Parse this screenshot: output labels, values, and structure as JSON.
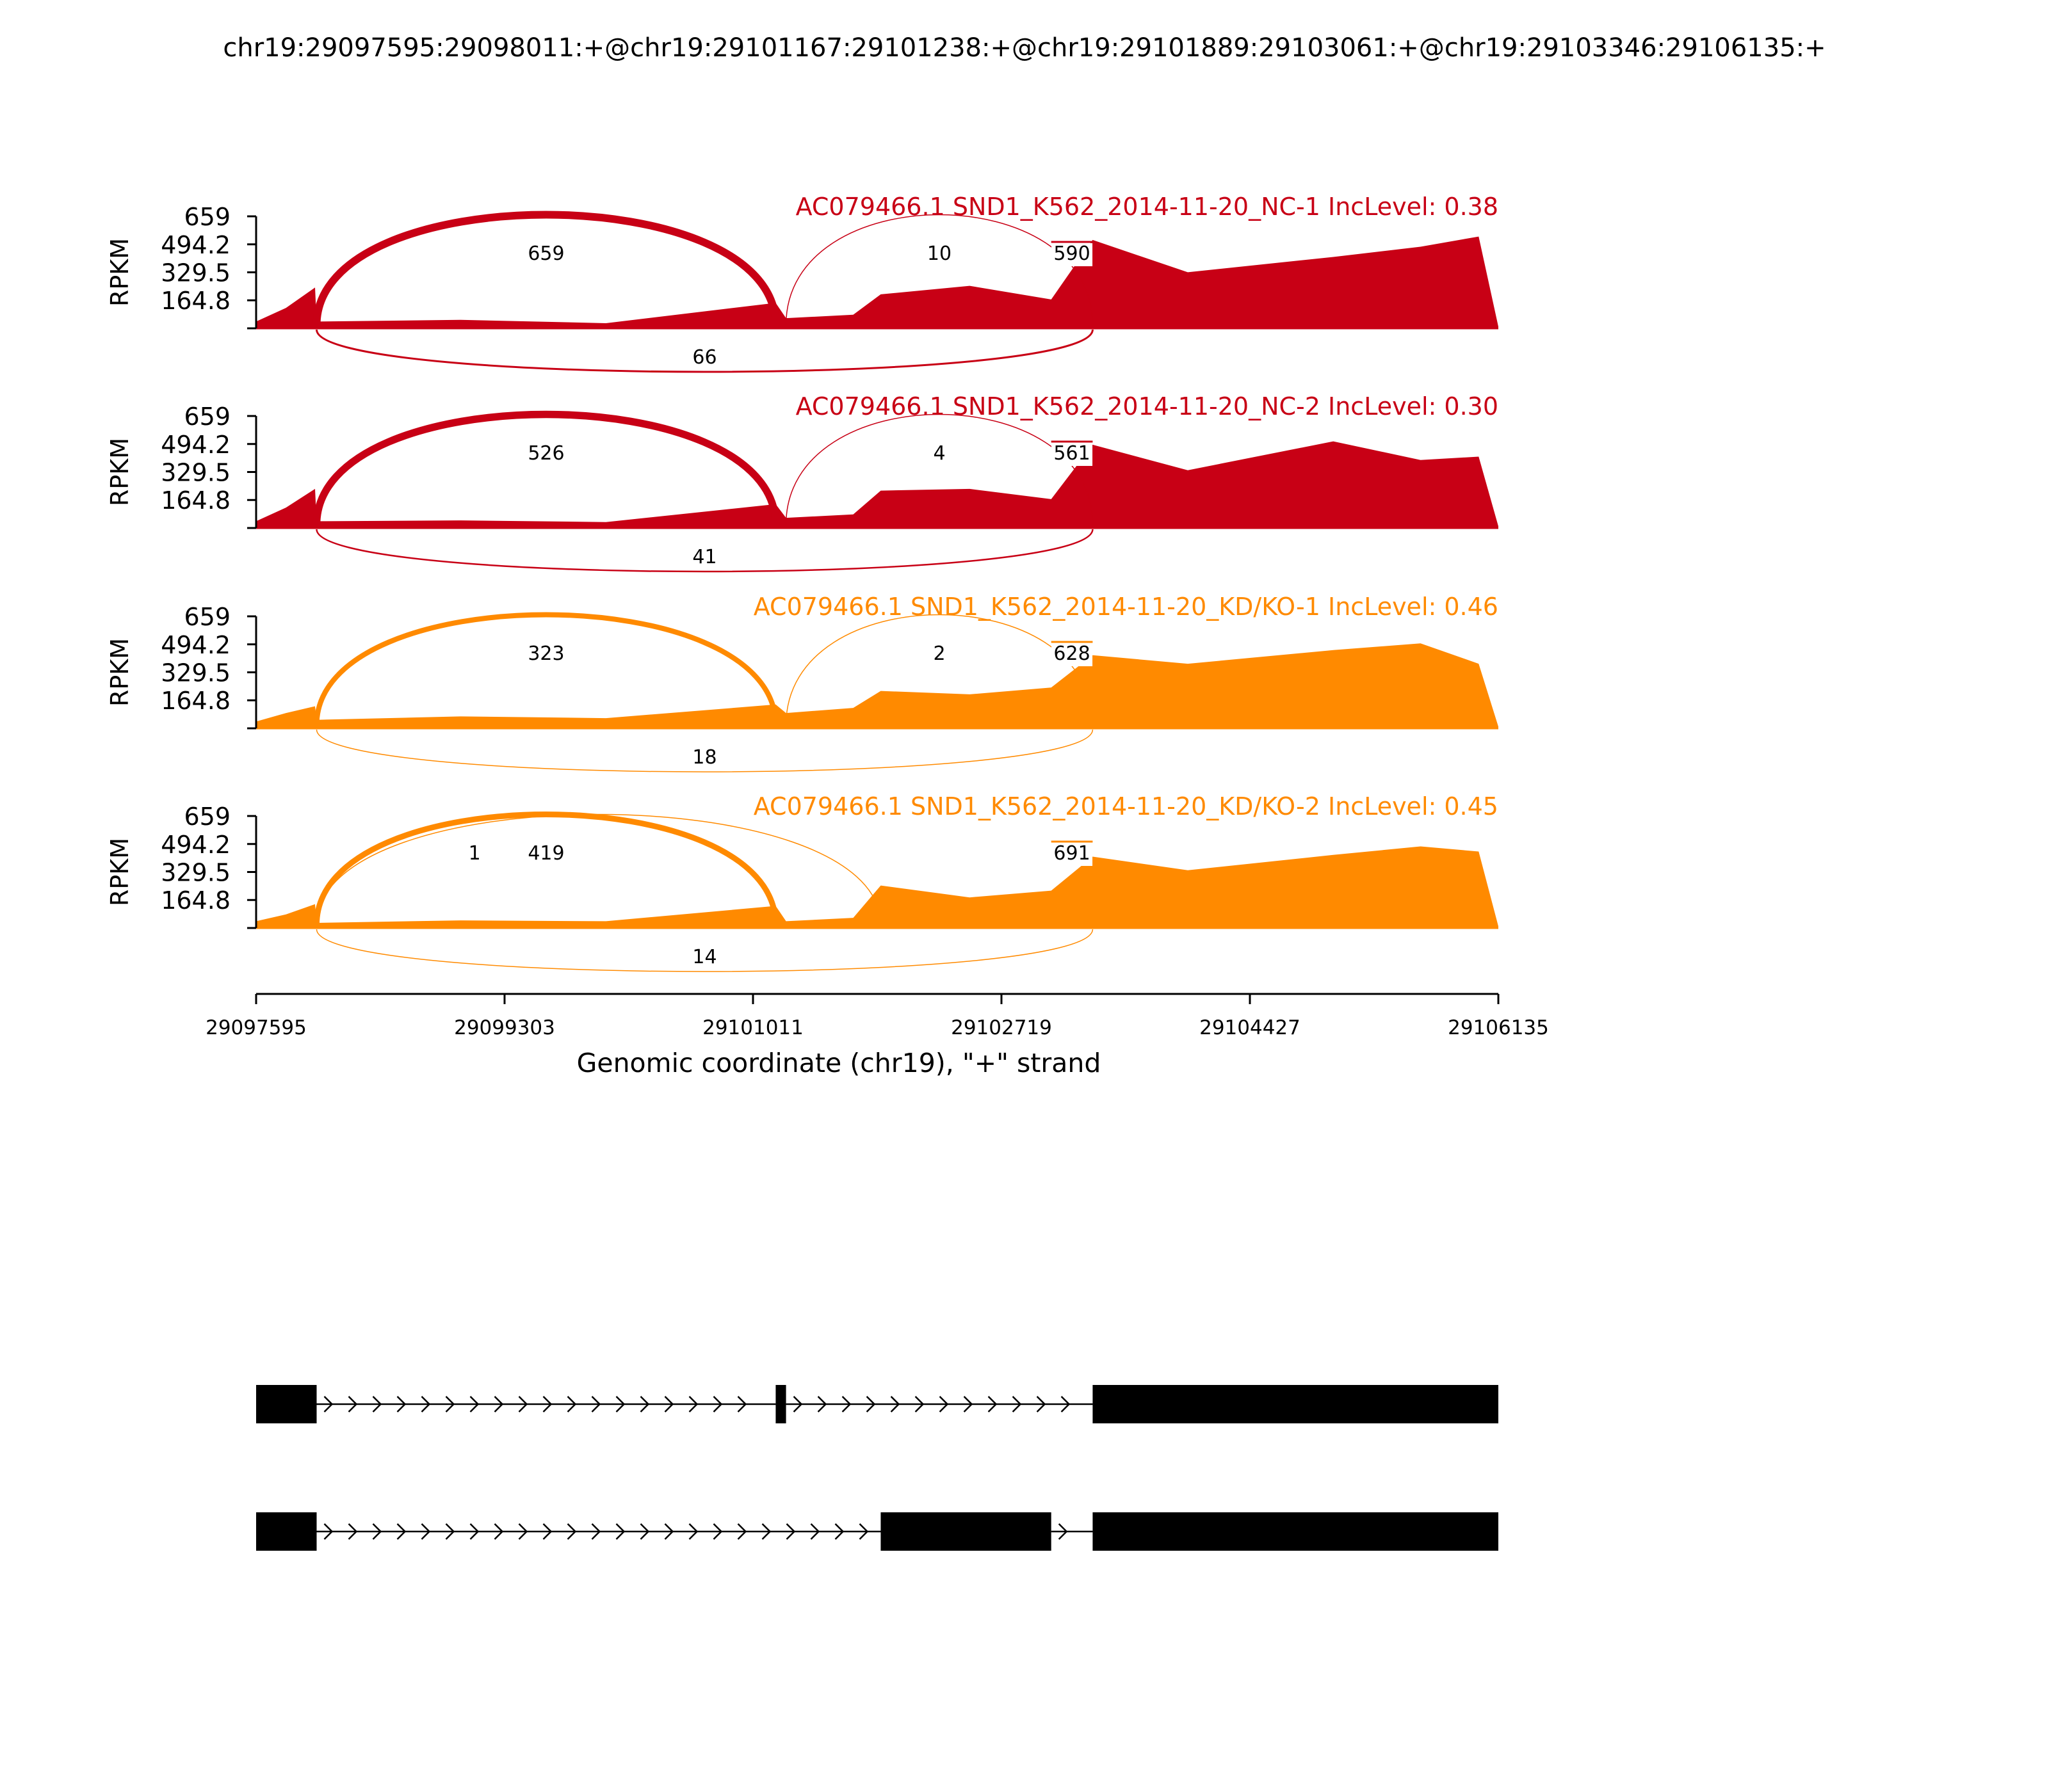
{
  "figure": {
    "title": "chr19:29097595:29098011:+@chr19:29101167:29101238:+@chr19:29101889:29103061:+@chr19:29103346:29106135:+"
  },
  "colors": {
    "nc": "#c80015",
    "kd": "#ff8a00",
    "axis": "#000000",
    "transcript": "#000000"
  },
  "chart_data": {
    "type": "sashimi",
    "ylabel": "RPKM",
    "xlabel": "Genomic coordinate (chr19), \"+\" strand",
    "xlim": [
      29097595,
      29106135
    ],
    "x_ticks": [
      "29097595",
      "29099303",
      "29101011",
      "29102719",
      "29104427",
      "29106135"
    ],
    "ylim": [
      0,
      659
    ],
    "y_ticks": [
      "164.8",
      "329.5",
      "494.2",
      "659"
    ],
    "exons_observed": [
      [
        29097595,
        29098011
      ],
      [
        29101167,
        29101238
      ],
      [
        29101889,
        29103061
      ],
      [
        29103346,
        29106135
      ]
    ],
    "panels": [
      {
        "title": "AC079466.1 SND1_K562_2014-11-20_NC-1 IncLevel: 0.38",
        "group": "nc",
        "junctions": [
          {
            "start": 29098011,
            "end": 29101167,
            "count": 659,
            "side": "above"
          },
          {
            "start": 29101238,
            "end": 29103346,
            "count": 10,
            "side": "above"
          },
          {
            "start": 29098011,
            "end": 29103346,
            "count": 66,
            "side": "below"
          },
          {
            "start": 29103061,
            "end": 29103346,
            "count": 590,
            "side": "above"
          }
        ],
        "coverage": [
          {
            "x": 29097595,
            "y": 40
          },
          {
            "x": 29097800,
            "y": 120
          },
          {
            "x": 29098000,
            "y": 240
          },
          {
            "x": 29098011,
            "y": 40
          },
          {
            "x": 29099000,
            "y": 50
          },
          {
            "x": 29100000,
            "y": 30
          },
          {
            "x": 29101167,
            "y": 150
          },
          {
            "x": 29101238,
            "y": 60
          },
          {
            "x": 29101700,
            "y": 80
          },
          {
            "x": 29101889,
            "y": 200
          },
          {
            "x": 29102500,
            "y": 250
          },
          {
            "x": 29103061,
            "y": 170
          },
          {
            "x": 29103346,
            "y": 520
          },
          {
            "x": 29104000,
            "y": 330
          },
          {
            "x": 29105000,
            "y": 420
          },
          {
            "x": 29105600,
            "y": 480
          },
          {
            "x": 29106000,
            "y": 540
          },
          {
            "x": 29106135,
            "y": 10
          }
        ]
      },
      {
        "title": "AC079466.1 SND1_K562_2014-11-20_NC-2 IncLevel: 0.30",
        "group": "nc",
        "junctions": [
          {
            "start": 29098011,
            "end": 29101167,
            "count": 526,
            "side": "above"
          },
          {
            "start": 29101238,
            "end": 29103346,
            "count": 4,
            "side": "above"
          },
          {
            "start": 29098011,
            "end": 29103346,
            "count": 41,
            "side": "below"
          },
          {
            "start": 29103061,
            "end": 29103346,
            "count": 561,
            "side": "above"
          }
        ],
        "coverage": [
          {
            "x": 29097595,
            "y": 40
          },
          {
            "x": 29097800,
            "y": 120
          },
          {
            "x": 29098000,
            "y": 230
          },
          {
            "x": 29098011,
            "y": 40
          },
          {
            "x": 29099000,
            "y": 45
          },
          {
            "x": 29100000,
            "y": 35
          },
          {
            "x": 29101167,
            "y": 140
          },
          {
            "x": 29101238,
            "y": 60
          },
          {
            "x": 29101700,
            "y": 80
          },
          {
            "x": 29101889,
            "y": 220
          },
          {
            "x": 29102500,
            "y": 230
          },
          {
            "x": 29103061,
            "y": 170
          },
          {
            "x": 29103346,
            "y": 490
          },
          {
            "x": 29104000,
            "y": 340
          },
          {
            "x": 29105000,
            "y": 510
          },
          {
            "x": 29105600,
            "y": 400
          },
          {
            "x": 29106000,
            "y": 420
          },
          {
            "x": 29106135,
            "y": 10
          }
        ]
      },
      {
        "title": "AC079466.1 SND1_K562_2014-11-20_KD/KO-1 IncLevel: 0.46",
        "group": "kd",
        "junctions": [
          {
            "start": 29098011,
            "end": 29101167,
            "count": 323,
            "side": "above"
          },
          {
            "start": 29101238,
            "end": 29103346,
            "count": 2,
            "side": "above"
          },
          {
            "start": 29098011,
            "end": 29103346,
            "count": 18,
            "side": "below"
          },
          {
            "start": 29103061,
            "end": 29103346,
            "count": 628,
            "side": "above"
          }
        ],
        "coverage": [
          {
            "x": 29097595,
            "y": 40
          },
          {
            "x": 29097800,
            "y": 90
          },
          {
            "x": 29098000,
            "y": 130
          },
          {
            "x": 29098011,
            "y": 50
          },
          {
            "x": 29099000,
            "y": 70
          },
          {
            "x": 29100000,
            "y": 60
          },
          {
            "x": 29101167,
            "y": 140
          },
          {
            "x": 29101238,
            "y": 90
          },
          {
            "x": 29101700,
            "y": 120
          },
          {
            "x": 29101889,
            "y": 220
          },
          {
            "x": 29102500,
            "y": 200
          },
          {
            "x": 29103061,
            "y": 240
          },
          {
            "x": 29103346,
            "y": 430
          },
          {
            "x": 29104000,
            "y": 380
          },
          {
            "x": 29105000,
            "y": 460
          },
          {
            "x": 29105600,
            "y": 500
          },
          {
            "x": 29106000,
            "y": 380
          },
          {
            "x": 29106135,
            "y": 10
          }
        ]
      },
      {
        "title": "AC079466.1 SND1_K562_2014-11-20_KD/KO-2 IncLevel: 0.45",
        "group": "kd",
        "junctions": [
          {
            "start": 29098011,
            "end": 29101167,
            "count": 419,
            "side": "above"
          },
          {
            "start": 29098011,
            "end": 29101889,
            "count": 1,
            "side": "above"
          },
          {
            "start": 29098011,
            "end": 29103346,
            "count": 14,
            "side": "below"
          },
          {
            "start": 29103061,
            "end": 29103346,
            "count": 691,
            "side": "above"
          }
        ],
        "coverage": [
          {
            "x": 29097595,
            "y": 40
          },
          {
            "x": 29097800,
            "y": 80
          },
          {
            "x": 29098000,
            "y": 140
          },
          {
            "x": 29098011,
            "y": 30
          },
          {
            "x": 29099000,
            "y": 45
          },
          {
            "x": 29100000,
            "y": 40
          },
          {
            "x": 29101167,
            "y": 130
          },
          {
            "x": 29101238,
            "y": 40
          },
          {
            "x": 29101700,
            "y": 60
          },
          {
            "x": 29101889,
            "y": 250
          },
          {
            "x": 29102500,
            "y": 180
          },
          {
            "x": 29103061,
            "y": 220
          },
          {
            "x": 29103346,
            "y": 420
          },
          {
            "x": 29104000,
            "y": 340
          },
          {
            "x": 29105000,
            "y": 430
          },
          {
            "x": 29105600,
            "y": 480
          },
          {
            "x": 29106000,
            "y": 450
          },
          {
            "x": 29106135,
            "y": 10
          }
        ]
      }
    ],
    "transcripts": [
      {
        "exons": [
          [
            29097595,
            29098011
          ],
          [
            29101167,
            29101238
          ],
          [
            29103346,
            29106135
          ]
        ]
      },
      {
        "exons": [
          [
            29097595,
            29098011
          ],
          [
            29101889,
            29103061
          ],
          [
            29103346,
            29106135
          ]
        ]
      }
    ]
  }
}
